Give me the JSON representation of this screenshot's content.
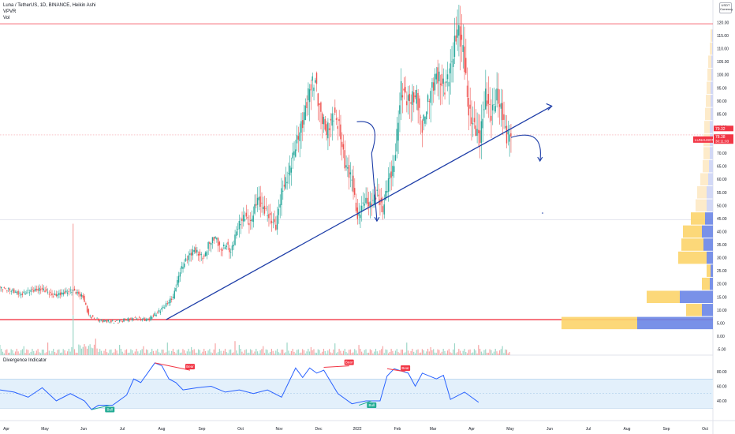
{
  "legend": {
    "symbol_line": "Luna / TetherUS, 1D, BINANCE, Heikin Ashi",
    "vpvr_label": "VPVR",
    "vol_label": "Vol"
  },
  "corner_badge": {
    "line1": "USDT",
    "line2": "Currency"
  },
  "oscillator": {
    "title": "Divergence Indicator",
    "y_ticks": [
      "80.00",
      "60.00",
      "40.00"
    ],
    "labels": {
      "bear": "Bear",
      "bull": "Bull"
    }
  },
  "price_tag": {
    "symbol": "LUNAUSDT",
    "price": "78.38",
    "countdown": "30:11:03",
    "prev": "79.32"
  },
  "chart_data": {
    "type": "candlestick",
    "title": "Luna / TetherUS, 1D, BINANCE, Heikin Ashi",
    "y_ticks": [
      "120.00",
      "115.00",
      "110.00",
      "105.00",
      "100.00",
      "95.00",
      "90.00",
      "85.00",
      "80.00",
      "75.00",
      "70.00",
      "65.00",
      "60.00",
      "55.00",
      "50.00",
      "45.00",
      "40.00",
      "35.00",
      "30.00",
      "25.00",
      "20.00",
      "15.00",
      "10.00",
      "5.00",
      "0.00",
      "-5.00"
    ],
    "ylim": [
      -7,
      124
    ],
    "x_ticks": [
      "Apr",
      "May",
      "Jun",
      "Jul",
      "Aug",
      "Sep",
      "Oct",
      "Nov",
      "Dec",
      "2022",
      "Feb",
      "Mar",
      "Apr",
      "May",
      "Jun",
      "Jul",
      "Aug",
      "Sep",
      "Oct"
    ],
    "price_path": [
      [
        0,
        18.5
      ],
      [
        8,
        17.5
      ],
      [
        15,
        16
      ],
      [
        22,
        17.5
      ],
      [
        30,
        18
      ],
      [
        38,
        15.5
      ],
      [
        45,
        16.5
      ],
      [
        52,
        17.5
      ],
      [
        59,
        15
      ],
      [
        63,
        8
      ],
      [
        66,
        7
      ],
      [
        71,
        6
      ],
      [
        76,
        5.8
      ],
      [
        82,
        5.5
      ],
      [
        90,
        6.3
      ],
      [
        97,
        6.8
      ],
      [
        105,
        6.2
      ],
      [
        112,
        9
      ],
      [
        118,
        12
      ],
      [
        123,
        15
      ],
      [
        128,
        25
      ],
      [
        133,
        30
      ],
      [
        138,
        33
      ],
      [
        142,
        31
      ],
      [
        145,
        30
      ],
      [
        148,
        35
      ],
      [
        153,
        38
      ],
      [
        157,
        33
      ],
      [
        161,
        35
      ],
      [
        164,
        32
      ],
      [
        169,
        42
      ],
      [
        174,
        46
      ],
      [
        178,
        43
      ],
      [
        183,
        53
      ],
      [
        187,
        49
      ],
      [
        192,
        45
      ],
      [
        196,
        42
      ],
      [
        200,
        55
      ],
      [
        205,
        62
      ],
      [
        210,
        73
      ],
      [
        215,
        82
      ],
      [
        220,
        95
      ],
      [
        224,
        98
      ],
      [
        227,
        87
      ],
      [
        232,
        78
      ],
      [
        237,
        85
      ],
      [
        241,
        80
      ],
      [
        245,
        66
      ],
      [
        250,
        60
      ],
      [
        254,
        45
      ],
      [
        259,
        52
      ],
      [
        263,
        50
      ],
      [
        268,
        55
      ],
      [
        272,
        48
      ],
      [
        276,
        60
      ],
      [
        280,
        65
      ],
      [
        285,
        95
      ],
      [
        290,
        90
      ],
      [
        296,
        92
      ],
      [
        300,
        80
      ],
      [
        305,
        92
      ],
      [
        310,
        100
      ],
      [
        316,
        95
      ],
      [
        320,
        102
      ],
      [
        325,
        118
      ],
      [
        329,
        110
      ],
      [
        333,
        86
      ],
      [
        337,
        80
      ],
      [
        341,
        76
      ],
      [
        345,
        92
      ],
      [
        349,
        85
      ],
      [
        353,
        92
      ],
      [
        357,
        85
      ],
      [
        360,
        76
      ],
      [
        363,
        78
      ]
    ],
    "hlines": [
      {
        "label": "support",
        "value": 6.3,
        "color": "#f23645"
      },
      {
        "label": "resistance",
        "value": 119.5,
        "color": "#f23645"
      },
      {
        "label": "mid",
        "value": 44.5,
        "color": "#e0e3eb"
      }
    ],
    "trendline": {
      "from": [
        118,
        6.3
      ],
      "to": [
        392,
        88
      ],
      "color": "#1e3ea8"
    },
    "projection": {
      "from": [
        363,
        76
      ],
      "peak": [
        370,
        77.5
      ],
      "to": [
        378,
        67
      ],
      "color": "#1e3ea8"
    },
    "dip_arrow": {
      "from": [
        258,
        82
      ],
      "mid": [
        264,
        70
      ],
      "to": [
        270,
        44
      ],
      "color": "#1e3ea8"
    },
    "volume_profile": {
      "levels": [
        5,
        10,
        15,
        20,
        25,
        30,
        35,
        40,
        45,
        50,
        55,
        60,
        65,
        70,
        75,
        80,
        85,
        90,
        95,
        100,
        105,
        110,
        115
      ],
      "up": [
        96,
        20,
        62,
        10,
        5,
        36,
        28,
        24,
        18,
        14,
        12,
        10,
        8,
        8,
        8,
        7,
        7,
        6,
        5,
        5,
        4,
        3,
        2
      ],
      "down": [
        94,
        14,
        40,
        4,
        3,
        8,
        12,
        14,
        10,
        8,
        8,
        6,
        5,
        4,
        4,
        4,
        3,
        3,
        3,
        2,
        2,
        1,
        1
      ]
    },
    "oscillator_series": [
      [
        0,
        55
      ],
      [
        10,
        52
      ],
      [
        20,
        45
      ],
      [
        30,
        58
      ],
      [
        40,
        40
      ],
      [
        50,
        50
      ],
      [
        60,
        40
      ],
      [
        65,
        28
      ],
      [
        70,
        34
      ],
      [
        80,
        34
      ],
      [
        90,
        48
      ],
      [
        95,
        70
      ],
      [
        100,
        65
      ],
      [
        110,
        92
      ],
      [
        115,
        88
      ],
      [
        120,
        70
      ],
      [
        125,
        65
      ],
      [
        130,
        55
      ],
      [
        140,
        58
      ],
      [
        150,
        60
      ],
      [
        160,
        52
      ],
      [
        170,
        55
      ],
      [
        180,
        50
      ],
      [
        190,
        55
      ],
      [
        200,
        45
      ],
      [
        210,
        85
      ],
      [
        215,
        72
      ],
      [
        220,
        85
      ],
      [
        225,
        78
      ],
      [
        230,
        82
      ],
      [
        240,
        50
      ],
      [
        250,
        36
      ],
      [
        260,
        40
      ],
      [
        270,
        40
      ],
      [
        275,
        74
      ],
      [
        280,
        84
      ],
      [
        290,
        78
      ],
      [
        295,
        60
      ],
      [
        300,
        78
      ],
      [
        310,
        70
      ],
      [
        315,
        75
      ],
      [
        320,
        42
      ],
      [
        330,
        52
      ],
      [
        340,
        38
      ]
    ],
    "oscillator_ylim": [
      25,
      95
    ],
    "divergences": [
      {
        "kind": "bear",
        "from": [
          110,
          92
        ],
        "to": [
          135,
          82
        ]
      },
      {
        "kind": "bear",
        "from": [
          230,
          86
        ],
        "to": [
          248,
          88
        ]
      },
      {
        "kind": "bear",
        "from": [
          275,
          84
        ],
        "to": [
          288,
          80
        ]
      },
      {
        "kind": "bull",
        "from": [
          65,
          28
        ],
        "to": [
          78,
          34
        ]
      },
      {
        "kind": "bull",
        "from": [
          255,
          34
        ],
        "to": [
          264,
          40
        ]
      }
    ]
  }
}
